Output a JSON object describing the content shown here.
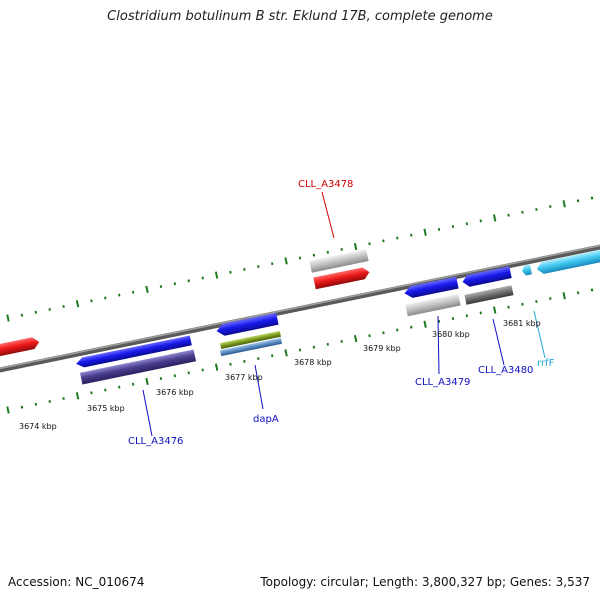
{
  "title": "Clostridium botulinum B str. Eklund 17B, complete genome",
  "footer": {
    "accession": "Accession: NC_010674",
    "summary": "Topology: circular; Length: 3,800,327 bp; Genes: 3,537"
  },
  "colors": {
    "backbone": "#7a7a7a",
    "ticks": "#1e7a1e",
    "cds_forward": "#1010e0",
    "cds_reverse": "#1010e0",
    "red_feature": "#e01010",
    "rrna": "#40c8f0",
    "purple_feature": "#4a3f8f",
    "gray_feature": "#bdbdbd",
    "dark_gray_feature": "#6e6e6e",
    "olive_feature": "#7a9a20",
    "steel_feature": "#5a8ac0"
  },
  "kbp_labels": [
    "3674 kbp",
    "3675 kbp",
    "3676 kbp",
    "3677 kbp",
    "3678 kbp",
    "3679 kbp",
    "3680 kbp",
    "3681 kbp"
  ],
  "gene_labels": [
    {
      "id": "cll_a3478",
      "text": "CLL_A3478",
      "color": "#d00000"
    },
    {
      "id": "cll_a3476",
      "text": "CLL_A3476",
      "color": "#1010c0"
    },
    {
      "id": "dapa",
      "text": "dapA",
      "color": "#1010c0"
    },
    {
      "id": "cll_a3479",
      "text": "CLL_A3479",
      "color": "#1010c0"
    },
    {
      "id": "cll_a3480",
      "text": "CLL_A3480",
      "color": "#1010c0"
    },
    {
      "id": "rrff",
      "text": "rrfF",
      "color": "#20a8d8"
    }
  ]
}
